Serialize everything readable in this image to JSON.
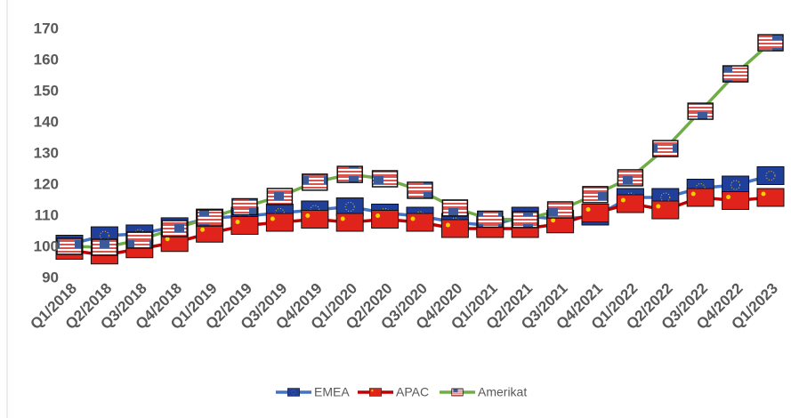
{
  "chart_data": {
    "type": "line",
    "categories": [
      "Q1/2018",
      "Q2/2018",
      "Q3/2018",
      "Q4/2018",
      "Q1/2019",
      "Q2/2019",
      "Q3/2019",
      "Q4/2019",
      "Q1/2020",
      "Q2/2020",
      "Q3/2020",
      "Q4/2020",
      "Q1/2021",
      "Q2/2021",
      "Q3/2021",
      "Q4/2021",
      "Q1/2022",
      "Q2/2022",
      "Q3/2022",
      "Q4/2022",
      "Q1/2023"
    ],
    "series": [
      {
        "name": "EMEA",
        "color": "#4472c4",
        "values": [
          101,
          103.7,
          104.3,
          106.6,
          109.4,
          110,
          111,
          112,
          113,
          111,
          110,
          108,
          107,
          110,
          109,
          110,
          116,
          116,
          119,
          120,
          123
        ]
      },
      {
        "name": "APAC",
        "color": "#c00000",
        "values": [
          99,
          97.5,
          99.5,
          101.5,
          104.5,
          107,
          108,
          109,
          108,
          109,
          108,
          106,
          106,
          106,
          107.5,
          111,
          114,
          112,
          116,
          115,
          116
        ]
      },
      {
        "name": "Amerikat",
        "color": "#70ad47",
        "values": [
          100.3,
          100,
          102.3,
          106,
          109.4,
          113,
          116.3,
          120.9,
          123.4,
          122,
          118.3,
          112.6,
          109,
          108.9,
          112,
          116.9,
          122.3,
          131.7,
          143.7,
          155.7,
          165.7
        ]
      }
    ],
    "ylim": [
      90,
      170
    ],
    "yticks": [
      90,
      100,
      110,
      120,
      130,
      140,
      150,
      160,
      170
    ],
    "legend": "bottom"
  }
}
